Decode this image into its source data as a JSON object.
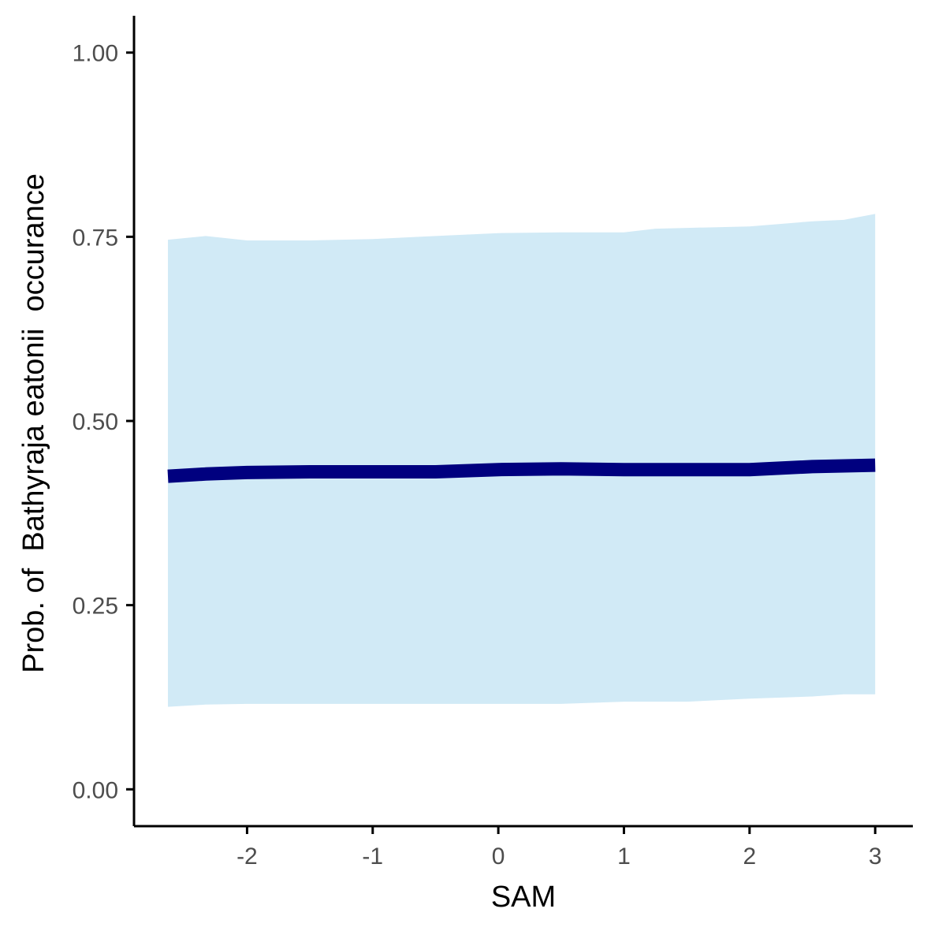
{
  "chart_data": {
    "type": "line",
    "title": "",
    "xlabel": "SAM",
    "ylabel": "Prob. of  Bathyraja eatonii  occurance",
    "xlim": [
      -2.9,
      3.3
    ],
    "ylim": [
      -0.05,
      1.05
    ],
    "x_ticks": [
      -2,
      -1,
      0,
      1,
      2,
      3
    ],
    "x_tick_labels": [
      "-2",
      "-1",
      "0",
      "1",
      "2",
      "3"
    ],
    "y_ticks": [
      0,
      0.25,
      0.5,
      0.75,
      1
    ],
    "y_tick_labels": [
      "0.00",
      "0.25",
      "0.50",
      "0.75",
      "1.00"
    ],
    "grid": false,
    "legend": "none",
    "colors": {
      "line": "#00007f",
      "ribbon": "#d1eaf6",
      "axis": "#000000",
      "tick_text": "#4d4d4d"
    },
    "series": [
      {
        "x": [
          -2.63,
          -2.33,
          -2.0,
          -1.5,
          -1.0,
          -0.5,
          0.0,
          0.5,
          1.0,
          1.25,
          1.5,
          2.0,
          2.5,
          2.75,
          3.0
        ],
        "y": [
          0.425,
          0.428,
          0.43,
          0.431,
          0.431,
          0.431,
          0.434,
          0.435,
          0.434,
          0.434,
          0.434,
          0.434,
          0.438,
          0.439,
          0.44
        ],
        "lower": [
          0.112,
          0.115,
          0.116,
          0.116,
          0.116,
          0.116,
          0.116,
          0.116,
          0.119,
          0.119,
          0.119,
          0.123,
          0.126,
          0.129,
          0.129
        ],
        "upper": [
          0.746,
          0.751,
          0.745,
          0.745,
          0.747,
          0.751,
          0.755,
          0.756,
          0.756,
          0.761,
          0.762,
          0.764,
          0.771,
          0.773,
          0.781
        ]
      }
    ]
  }
}
